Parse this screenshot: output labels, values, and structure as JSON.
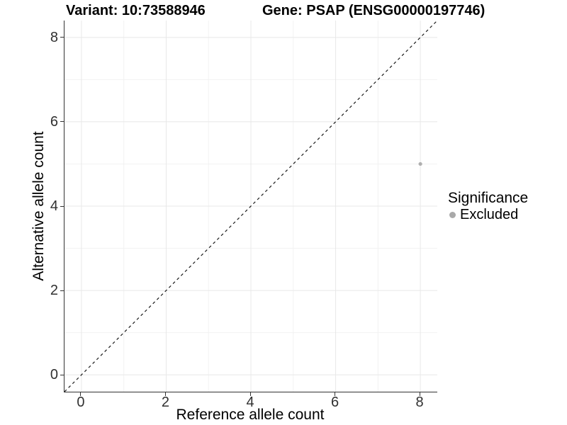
{
  "header": {
    "variant_title": "Variant: 10:73588946",
    "gene_title": "Gene: PSAP (ENSG00000197746)"
  },
  "chart_data": {
    "type": "scatter",
    "title": "Variant: 10:73588946  |  Gene: PSAP (ENSG00000197746)",
    "xlabel": "Reference allele count",
    "ylabel": "Alternative allele count",
    "xlim": [
      -0.4,
      8.4
    ],
    "ylim": [
      -0.4,
      8.4
    ],
    "x_breaks": [
      0,
      2,
      4,
      6,
      8
    ],
    "y_breaks": [
      0,
      2,
      4,
      6,
      8
    ],
    "x_minor_breaks": [
      1,
      3,
      5,
      7
    ],
    "y_minor_breaks": [
      1,
      3,
      5,
      7
    ],
    "grid": true,
    "series": [
      {
        "name": "Excluded",
        "points": [
          {
            "x": 8,
            "y": 5
          }
        ]
      }
    ],
    "reference_line": {
      "type": "abline",
      "slope": 1,
      "intercept": 0,
      "style": "dashed",
      "color": "#1a1a1a"
    },
    "legend": {
      "title": "Significance",
      "position": "right",
      "items": [
        {
          "label": "Excluded",
          "color": "#a9a9a9",
          "shape": "circle"
        }
      ]
    }
  },
  "colors": {
    "background": "#ffffff",
    "axis_line": "#333333",
    "tick_label": "#303030",
    "grid_major": "#e8e8e8",
    "grid_minor": "#f2f2f2",
    "point": "#afafaf",
    "legend_key": "#a9a9a9"
  }
}
